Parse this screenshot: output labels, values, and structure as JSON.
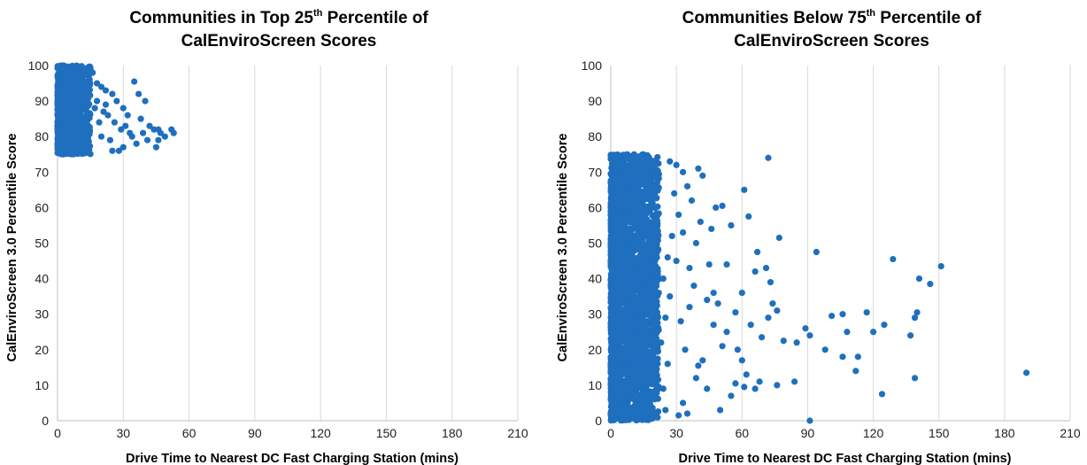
{
  "chart_data": [
    {
      "type": "scatter",
      "title_line1": {
        "pre": "Communities in Top 25",
        "sup": "th",
        "post": " Percentile of"
      },
      "title_line2": "CalEnviroScreen Scores",
      "xlabel": "Drive Time to Nearest DC Fast Charging Station (mins)",
      "ylabel": "CalEnviroScreen 3.0 Percentile Score",
      "xlim": [
        0,
        210
      ],
      "ylim": [
        0,
        100
      ],
      "xticks": [
        "0",
        "30",
        "60",
        "90",
        "120",
        "150",
        "180",
        "210"
      ],
      "yticks": [
        "0",
        "10",
        "20",
        "30",
        "40",
        "50",
        "60",
        "70",
        "80",
        "90",
        "100"
      ],
      "grid": "vertical",
      "marker_color": "#1f6fbf",
      "series": [
        {
          "values_dense_region": {
            "x_range": [
              0,
              15
            ],
            "y_range": [
              75,
              100
            ]
          },
          "points": [
            [
              16,
              98
            ],
            [
              18,
              95
            ],
            [
              20,
              94
            ],
            [
              22,
              93
            ],
            [
              25,
              92
            ],
            [
              27,
              90
            ],
            [
              30,
              88
            ],
            [
              32,
              86
            ],
            [
              35,
              95.5
            ],
            [
              37,
              92
            ],
            [
              40,
              90
            ],
            [
              38,
              85
            ],
            [
              42,
              83
            ],
            [
              44,
              82
            ],
            [
              46,
              82
            ],
            [
              47,
              81
            ],
            [
              49,
              80
            ],
            [
              52,
              82
            ],
            [
              53,
              81
            ],
            [
              45,
              77
            ],
            [
              46,
              79
            ],
            [
              41,
              79
            ],
            [
              34,
              80
            ],
            [
              30,
              77
            ],
            [
              28,
              76
            ],
            [
              25,
              76
            ],
            [
              24,
              79
            ],
            [
              26,
              84
            ],
            [
              29,
              82
            ],
            [
              31,
              83
            ],
            [
              33,
              81
            ],
            [
              36,
              78
            ],
            [
              39,
              81
            ],
            [
              20,
              80
            ],
            [
              19,
              84
            ],
            [
              21,
              87
            ],
            [
              23,
              86
            ],
            [
              22,
              89
            ],
            [
              18,
              90
            ],
            [
              17,
              88
            ]
          ]
        }
      ]
    },
    {
      "type": "scatter",
      "title_line1": {
        "pre": "Communities Below 75",
        "sup": "th",
        "post": " Percentile of"
      },
      "title_line2": "CalEnviroScreen Scores",
      "xlabel": "Drive Time to Nearest DC Fast Charging Station (mins)",
      "ylabel": "CalEnviroScreen 3.0 Percentile Score",
      "xlim": [
        0,
        210
      ],
      "ylim": [
        0,
        100
      ],
      "xticks": [
        "0",
        "30",
        "60",
        "90",
        "120",
        "150",
        "180",
        "210"
      ],
      "yticks": [
        "0",
        "10",
        "20",
        "30",
        "40",
        "50",
        "60",
        "70",
        "80",
        "90",
        "100"
      ],
      "grid": "vertical",
      "marker_color": "#1f6fbf",
      "series": [
        {
          "values_dense_region": {
            "x_range": [
              0,
              22
            ],
            "y_range": [
              0,
              75
            ]
          },
          "points": [
            [
              72,
              74
            ],
            [
              61,
              65
            ],
            [
              63,
              57.5
            ],
            [
              51,
              60.5
            ],
            [
              48,
              60
            ],
            [
              55,
              55
            ],
            [
              46,
              54
            ],
            [
              77,
              51.5
            ],
            [
              67,
              47.5
            ],
            [
              94,
              47.5
            ],
            [
              71,
              43
            ],
            [
              73,
              39
            ],
            [
              66,
              42
            ],
            [
              60,
              36
            ],
            [
              57,
              30.5
            ],
            [
              53,
              44
            ],
            [
              45,
              44
            ],
            [
              47,
              36
            ],
            [
              74,
              33
            ],
            [
              76,
              31
            ],
            [
              72,
              29
            ],
            [
              64,
              27
            ],
            [
              69,
              23.5
            ],
            [
              79,
              22.5
            ],
            [
              85,
              22
            ],
            [
              89,
              26
            ],
            [
              91,
              24
            ],
            [
              101,
              29.5
            ],
            [
              106,
              30
            ],
            [
              108,
              25
            ],
            [
              117,
              30.5
            ],
            [
              120,
              25
            ],
            [
              125,
              27
            ],
            [
              129,
              45.5
            ],
            [
              137,
              24
            ],
            [
              139,
              29
            ],
            [
              140,
              30.5
            ],
            [
              141,
              40
            ],
            [
              146,
              38.5
            ],
            [
              151,
              43.5
            ],
            [
              98,
              20
            ],
            [
              106,
              18
            ],
            [
              113,
              18
            ],
            [
              112,
              14
            ],
            [
              124,
              7.5
            ],
            [
              139,
              12
            ],
            [
              190,
              13.5
            ],
            [
              91,
              0
            ],
            [
              84,
              11
            ],
            [
              76,
              10
            ],
            [
              68,
              11
            ],
            [
              66,
              9
            ],
            [
              61,
              9.5
            ],
            [
              55,
              7
            ],
            [
              57,
              10.5
            ],
            [
              62,
              13
            ],
            [
              50,
              3
            ],
            [
              44,
              9
            ],
            [
              39,
              12
            ],
            [
              35,
              2
            ],
            [
              31,
              1.5
            ],
            [
              33,
              5
            ],
            [
              40,
              15.5
            ],
            [
              42,
              17
            ],
            [
              51,
              21
            ],
            [
              53,
              25
            ],
            [
              58,
              20
            ],
            [
              60,
              17
            ],
            [
              47,
              27
            ],
            [
              49,
              33
            ],
            [
              44,
              34
            ],
            [
              38,
              38
            ],
            [
              36,
              43
            ],
            [
              39,
              50
            ],
            [
              41,
              56
            ],
            [
              37,
              62
            ],
            [
              35,
              66
            ],
            [
              33,
              70
            ],
            [
              30,
              72
            ],
            [
              27,
              73
            ],
            [
              40,
              71
            ],
            [
              42,
              69
            ],
            [
              29,
              64
            ],
            [
              31,
              58
            ],
            [
              28,
              52
            ],
            [
              26,
              46
            ],
            [
              24,
              40
            ],
            [
              27,
              35
            ],
            [
              25,
              29
            ],
            [
              23,
              22
            ],
            [
              26,
              16
            ],
            [
              24,
              9
            ],
            [
              25,
              3
            ],
            [
              32,
              28
            ],
            [
              34,
              20
            ],
            [
              36,
              32
            ],
            [
              30,
              45
            ],
            [
              33,
              53
            ]
          ]
        }
      ]
    }
  ]
}
